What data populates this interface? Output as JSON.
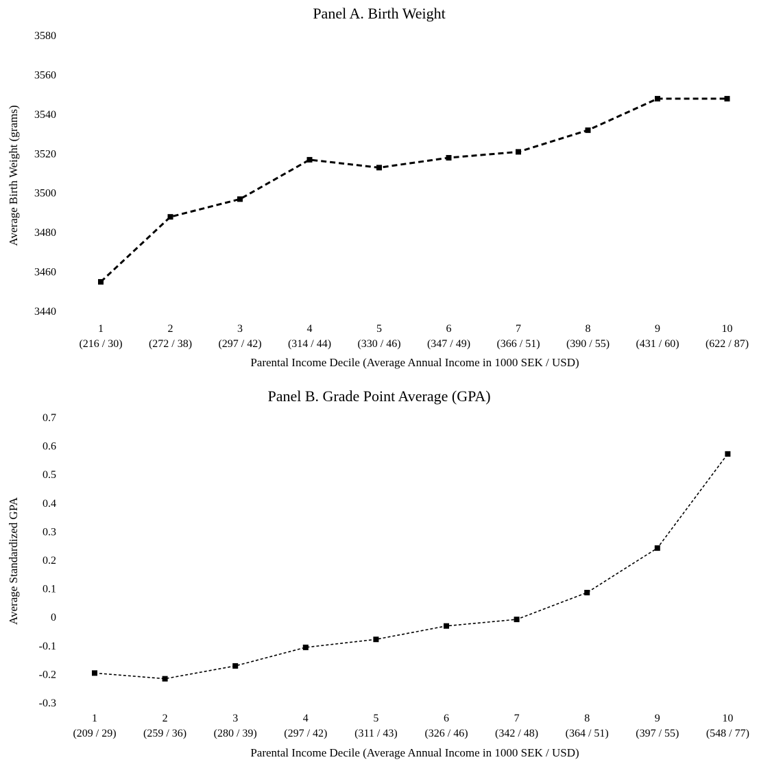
{
  "chart_data": [
    {
      "type": "line",
      "title": "Panel A. Birth Weight",
      "xlabel": "Parental Income Decile (Average Annual Income in 1000 SEK / USD)",
      "ylabel": "Average Birth Weight (grams)",
      "ylim": [
        3440,
        3580
      ],
      "yticks": [
        "3440",
        "3460",
        "3480",
        "3500",
        "3520",
        "3540",
        "3560",
        "3580"
      ],
      "categories": [
        "1",
        "2",
        "3",
        "4",
        "5",
        "6",
        "7",
        "8",
        "9",
        "10"
      ],
      "category_sublabels": [
        "(216 / 30)",
        "(272 / 38)",
        "(297 / 42)",
        "(314 / 44)",
        "(330 / 46)",
        "(347 / 49)",
        "(366 / 51)",
        "(390 / 55)",
        "(431 / 60)",
        "(622 / 87)"
      ],
      "series": [
        {
          "values": [
            3455,
            3488,
            3497,
            3517,
            3513,
            3518,
            3521,
            3532,
            3548,
            3548
          ]
        }
      ],
      "grid": false,
      "line_style": "dashed",
      "marker": "square",
      "color": "#000000"
    },
    {
      "type": "line",
      "title": "Panel B. Grade Point Average (GPA)",
      "xlabel": "Parental Income Decile (Average Annual Income in 1000 SEK / USD)",
      "ylabel": "Average Standardized GPA",
      "ylim": [
        -0.3,
        0.7
      ],
      "yticks": [
        "-0.3",
        "-0.2",
        "-0.1",
        "0",
        "0.1",
        "0.2",
        "0.3",
        "0.4",
        "0.5",
        "0.6",
        "0.7"
      ],
      "categories": [
        "1",
        "2",
        "3",
        "4",
        "5",
        "6",
        "7",
        "8",
        "9",
        "10"
      ],
      "category_sublabels": [
        "(209 / 29)",
        "(259 / 36)",
        "(280 / 39)",
        "(297 / 42)",
        "(311 / 43)",
        "(326 / 46)",
        "(342 / 48)",
        "(364 / 51)",
        "(397 / 55)",
        "(548 / 77)"
      ],
      "series": [
        {
          "values": [
            -0.195,
            -0.215,
            -0.17,
            -0.105,
            -0.077,
            -0.03,
            -0.007,
            0.087,
            0.243,
            0.573
          ]
        }
      ],
      "grid": false,
      "line_style": "dashed",
      "marker": "square",
      "color": "#000000"
    }
  ]
}
